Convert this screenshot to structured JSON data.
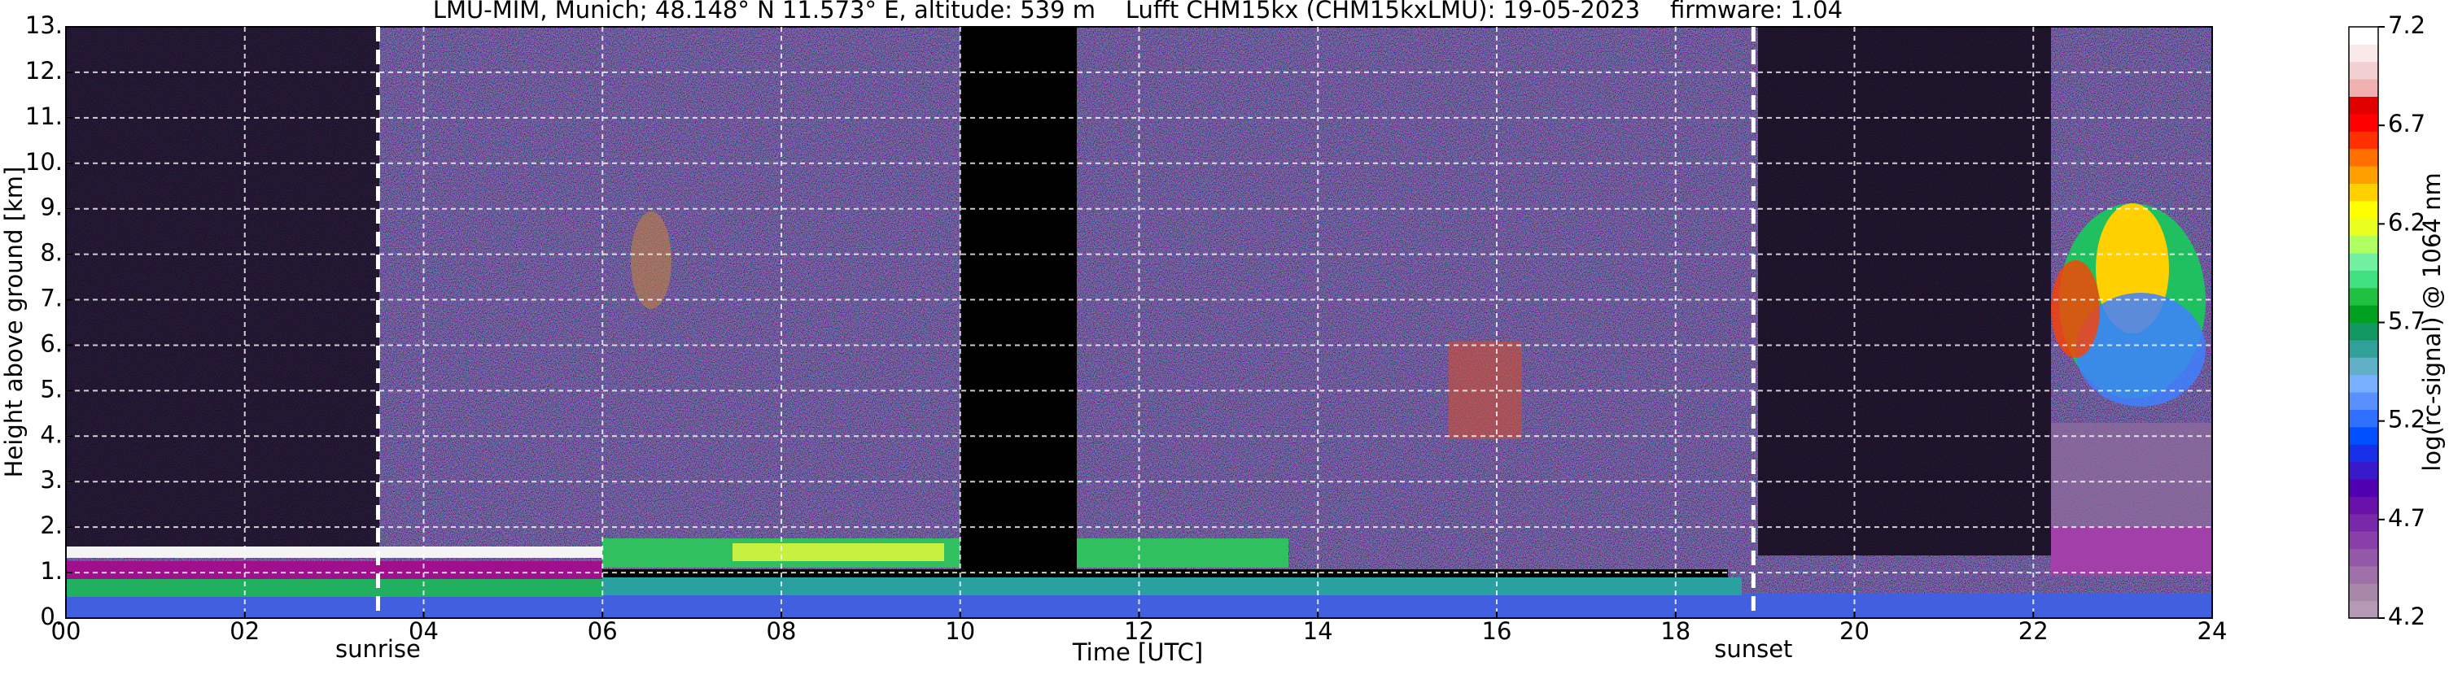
{
  "chart_data": {
    "type": "heatmap",
    "title": "LMU-MIM, Munich; 48.148° N 11.573° E, altitude: 539 m    Lufft CHM15kx (CHM15kxLMU): 19-05-2023    firmware: 1.04",
    "xlabel": "Time [UTC]",
    "ylabel": "Height above ground [km]",
    "xlim": [
      0,
      24
    ],
    "xticks": [
      {
        "value": 0,
        "label": "00"
      },
      {
        "value": 2,
        "label": "02"
      },
      {
        "value": 4,
        "label": "04"
      },
      {
        "value": 6,
        "label": "06"
      },
      {
        "value": 8,
        "label": "08"
      },
      10,
      12,
      14,
      16,
      18,
      20,
      22,
      24
    ],
    "ylim": [
      0,
      13
    ],
    "yticks": [
      {
        "value": 0,
        "label": "0."
      },
      {
        "value": 1,
        "label": "1."
      },
      {
        "value": 2,
        "label": "2."
      },
      {
        "value": 3,
        "label": "3."
      },
      {
        "value": 4,
        "label": "4."
      },
      {
        "value": 5,
        "label": "5."
      },
      {
        "value": 6,
        "label": "6."
      },
      {
        "value": 7,
        "label": "7."
      },
      {
        "value": 8,
        "label": "8."
      },
      {
        "value": 9,
        "label": "9."
      },
      {
        "value": 10,
        "label": "10."
      },
      {
        "value": 11,
        "label": "11."
      },
      {
        "value": 12,
        "label": "12."
      },
      {
        "value": 13,
        "label": "13."
      }
    ],
    "grid": true,
    "annotations": [
      {
        "label": "sunrise",
        "x": 3.49
      },
      {
        "label": "sunset",
        "x": 18.87
      }
    ],
    "colorbar": {
      "label": "log(rc-signal) @ 1064 nm",
      "lim": [
        4.2,
        7.2
      ],
      "ticks": [
        4.2,
        4.7,
        5.2,
        5.7,
        6.2,
        6.7,
        7.2
      ],
      "colors": [
        "#b49ab4",
        "#a888a8",
        "#a070a8",
        "#9458a8",
        "#8840a8",
        "#7828a8",
        "#6810a8",
        "#5000b0",
        "#3818c8",
        "#1830e8",
        "#0050ff",
        "#3070ff",
        "#5890ff",
        "#78b0ff",
        "#60b0c8",
        "#30a098",
        "#109860",
        "#00a020",
        "#20c040",
        "#40e080",
        "#70f0a0",
        "#b0ff60",
        "#e8ff20",
        "#ffff00",
        "#ffd000",
        "#ffa000",
        "#ff7000",
        "#ff3000",
        "#ff0000",
        "#e00000",
        "#f0b0b0",
        "#f0d0d0",
        "#f8e8e8",
        "#ffffff"
      ]
    }
  }
}
